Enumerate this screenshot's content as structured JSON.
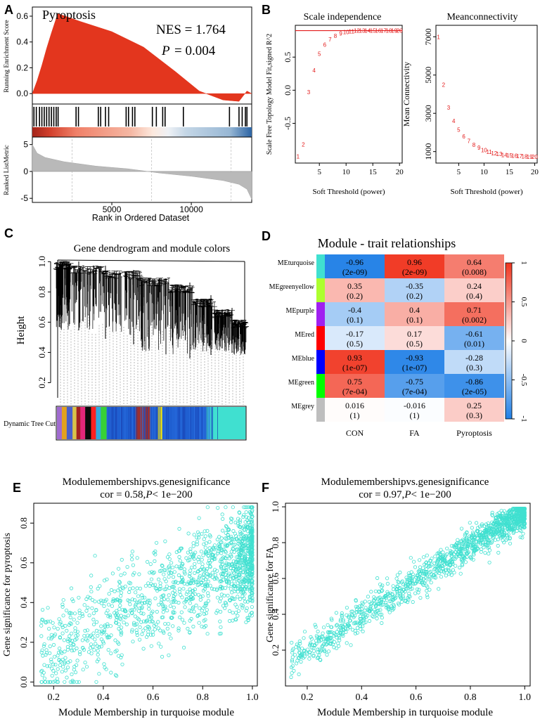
{
  "panels": {
    "A": "A",
    "B": "B",
    "C": "C",
    "D": "D",
    "E": "E",
    "F": "F"
  },
  "chart_data": [
    {
      "id": "A",
      "type": "line",
      "title": "Pyroptosis",
      "nes_label": "NES = 1.764",
      "p_label": "P",
      "p_value": "= 0.004",
      "ylabel_top": "Running Enrichment Score",
      "ylabel_bottom": "Ranked ListMetric",
      "xlabel": "Rank in Ordered Dataset",
      "x_ticks": [
        "5000",
        "10000"
      ],
      "x_tick_values": [
        5000,
        10000
      ],
      "xlim": [
        0,
        13800
      ],
      "es_ticks": [
        "0.0",
        "0.2",
        "0.4",
        "0.6"
      ],
      "es_tick_values": [
        0.0,
        0.2,
        0.4,
        0.6
      ],
      "es_ylim": [
        -0.07,
        0.66
      ],
      "es_curve": [
        [
          0,
          0
        ],
        [
          300,
          0.1
        ],
        [
          600,
          0.22
        ],
        [
          900,
          0.35
        ],
        [
          1200,
          0.47
        ],
        [
          1600,
          0.62
        ],
        [
          3000,
          0.56
        ],
        [
          5000,
          0.48
        ],
        [
          7000,
          0.36
        ],
        [
          9000,
          0.17
        ],
        [
          10500,
          0.02
        ],
        [
          12000,
          -0.05
        ],
        [
          13000,
          -0.06
        ],
        [
          13500,
          0.02
        ],
        [
          13800,
          0.0
        ]
      ],
      "gene_hits": [
        100,
        250,
        450,
        600,
        750,
        900,
        1050,
        1200,
        1350,
        1500,
        1620,
        2750,
        2900,
        4150,
        4300,
        4600,
        4800,
        5900,
        6050,
        6300,
        6450,
        7550,
        7800,
        8200,
        8350,
        9500,
        12400,
        13000,
        13200,
        13400,
        13500
      ],
      "metric_ticks": [
        "-5",
        "0",
        "5"
      ],
      "metric_tick_values": [
        -5,
        0,
        5
      ],
      "metric_ylim": [
        -5.5,
        6
      ],
      "metric_curve": [
        [
          0,
          5
        ],
        [
          300,
          3.4
        ],
        [
          800,
          2.6
        ],
        [
          2000,
          1.8
        ],
        [
          4000,
          1.0
        ],
        [
          6000,
          0.5
        ],
        [
          7000,
          0.1
        ],
        [
          8000,
          -0.3
        ],
        [
          10000,
          -0.9
        ],
        [
          12000,
          -1.7
        ],
        [
          13000,
          -2.4
        ],
        [
          13500,
          -3.3
        ],
        [
          13800,
          -5.2
        ]
      ],
      "vgrid": [
        2500,
        7500,
        12500
      ]
    },
    {
      "id": "B1",
      "type": "scatter",
      "title": "Scale independence",
      "xlabel": "Soft Threshold (power)",
      "ylabel": "Scale Free Topology Model Fit,signed R^2",
      "x_ticks": [
        "5",
        "10",
        "15",
        "20"
      ],
      "x_tick_values": [
        5,
        10,
        15,
        20
      ],
      "y_ticks": [
        "-0.5",
        "0.0",
        "0.5"
      ],
      "y_tick_values": [
        -0.5,
        0.0,
        0.5
      ],
      "xlim": [
        0.5,
        20.5
      ],
      "ylim": [
        -1.1,
        0.98
      ],
      "hline": 0.9,
      "points": [
        {
          "x": 1,
          "y": -1.0,
          "label": "1"
        },
        {
          "x": 2,
          "y": -0.82,
          "label": "2"
        },
        {
          "x": 3,
          "y": -0.03,
          "label": "3"
        },
        {
          "x": 4,
          "y": 0.3,
          "label": "4"
        },
        {
          "x": 5,
          "y": 0.55,
          "label": "5"
        },
        {
          "x": 6,
          "y": 0.69,
          "label": "6"
        },
        {
          "x": 7,
          "y": 0.77,
          "label": "7"
        },
        {
          "x": 8,
          "y": 0.82,
          "label": "8"
        },
        {
          "x": 9,
          "y": 0.86,
          "label": "9"
        },
        {
          "x": 10,
          "y": 0.88,
          "label": "10"
        },
        {
          "x": 11,
          "y": 0.89,
          "label": "11"
        },
        {
          "x": 12,
          "y": 0.9,
          "label": "12"
        },
        {
          "x": 13,
          "y": 0.9,
          "label": "13"
        },
        {
          "x": 14,
          "y": 0.9,
          "label": "14"
        },
        {
          "x": 15,
          "y": 0.9,
          "label": "15"
        },
        {
          "x": 16,
          "y": 0.9,
          "label": "16"
        },
        {
          "x": 17,
          "y": 0.9,
          "label": "17"
        },
        {
          "x": 18,
          "y": 0.9,
          "label": "18"
        },
        {
          "x": 19,
          "y": 0.9,
          "label": "19"
        },
        {
          "x": 20,
          "y": 0.9,
          "label": "20"
        }
      ]
    },
    {
      "id": "B2",
      "type": "scatter",
      "title": "Meanconnectivity",
      "xlabel": "Soft Threshold (power)",
      "ylabel": "Mean Connectivity",
      "x_ticks": [
        "5",
        "10",
        "15",
        "20"
      ],
      "x_tick_values": [
        5,
        10,
        15,
        20
      ],
      "y_ticks": [
        "1000",
        "3000",
        "5000",
        "7000"
      ],
      "y_tick_values": [
        1000,
        3000,
        5000,
        7000
      ],
      "xlim": [
        0.5,
        20.5
      ],
      "ylim": [
        400,
        7600
      ],
      "points": [
        {
          "x": 1,
          "y": 7000,
          "label": "1"
        },
        {
          "x": 2,
          "y": 4500,
          "label": "2"
        },
        {
          "x": 3,
          "y": 3300,
          "label": "3"
        },
        {
          "x": 4,
          "y": 2600,
          "label": "4"
        },
        {
          "x": 5,
          "y": 2150,
          "label": "5"
        },
        {
          "x": 6,
          "y": 1800,
          "label": "6"
        },
        {
          "x": 7,
          "y": 1550,
          "label": "7"
        },
        {
          "x": 8,
          "y": 1350,
          "label": "8"
        },
        {
          "x": 9,
          "y": 1200,
          "label": "9"
        },
        {
          "x": 10,
          "y": 1080,
          "label": "10"
        },
        {
          "x": 11,
          "y": 990,
          "label": "11"
        },
        {
          "x": 12,
          "y": 920,
          "label": "12"
        },
        {
          "x": 13,
          "y": 870,
          "label": "13"
        },
        {
          "x": 14,
          "y": 830,
          "label": "14"
        },
        {
          "x": 15,
          "y": 800,
          "label": "15"
        },
        {
          "x": 16,
          "y": 780,
          "label": "16"
        },
        {
          "x": 17,
          "y": 760,
          "label": "17"
        },
        {
          "x": 18,
          "y": 745,
          "label": "18"
        },
        {
          "x": 19,
          "y": 735,
          "label": "19"
        },
        {
          "x": 20,
          "y": 725,
          "label": "20"
        }
      ]
    },
    {
      "id": "C",
      "type": "dendrogram",
      "title": "Gene dendrogram and module colors",
      "ylabel": "Height",
      "y_ticks": [
        "0.2",
        "0.4",
        "0.6",
        "0.8",
        "1.0"
      ],
      "y_tick_values": [
        0.2,
        0.4,
        0.6,
        0.8,
        1.0
      ],
      "ylim": [
        0.1,
        1.02
      ],
      "color_bar_label": "Dynamic Tree Cut",
      "color_bar": [
        {
          "color": "#a06bd0",
          "w": 1
        },
        {
          "color": "#e3a11e",
          "w": 1
        },
        {
          "color": "#4a5fc9",
          "w": 1.2
        },
        {
          "color": "#d8c34a",
          "w": 0.8
        },
        {
          "color": "#a22020",
          "w": 0.8
        },
        {
          "color": "#e3277a",
          "w": 1
        },
        {
          "color": "#0a0a0a",
          "w": 1.2
        },
        {
          "color": "#ff2020",
          "w": 1
        },
        {
          "color": "#33aadd",
          "w": 1
        },
        {
          "color": "#37d137",
          "w": 1.2
        },
        {
          "color": "#1f5fd1",
          "w": 6
        },
        {
          "color": "#9b3030",
          "w": 3
        },
        {
          "color": "#1f5fd1",
          "w": 1.5
        },
        {
          "color": "#ffee00",
          "w": 1
        },
        {
          "color": "#1f5fd1",
          "w": 9
        },
        {
          "color": "#40e0d0",
          "w": 8
        }
      ]
    },
    {
      "id": "D",
      "type": "heatmap",
      "title": "Module - trait relationships",
      "columns": [
        "CON",
        "FA",
        "Pyroptosis"
      ],
      "rows": [
        {
          "name": "MEturquoise",
          "color": "#40e0d0",
          "cells": [
            {
              "v": -0.96,
              "r": "-0.96",
              "p": "(2e-09)"
            },
            {
              "v": 0.96,
              "r": "0.96",
              "p": "(2e-09)"
            },
            {
              "v": 0.64,
              "r": "0.64",
              "p": "(0.008)"
            }
          ]
        },
        {
          "name": "MEgreenyellow",
          "color": "#adff2f",
          "cells": [
            {
              "v": 0.35,
              "r": "0.35",
              "p": "(0.2)"
            },
            {
              "v": -0.35,
              "r": "-0.35",
              "p": "(0.2)"
            },
            {
              "v": 0.24,
              "r": "0.24",
              "p": "(0.4)"
            }
          ]
        },
        {
          "name": "MEpurple",
          "color": "#a020f0",
          "cells": [
            {
              "v": -0.4,
              "r": "-0.4",
              "p": "(0.1)"
            },
            {
              "v": 0.4,
              "r": "0.4",
              "p": "(0.1)"
            },
            {
              "v": 0.71,
              "r": "0.71",
              "p": "(0.002)"
            }
          ]
        },
        {
          "name": "MEred",
          "color": "#ff0000",
          "cells": [
            {
              "v": -0.17,
              "r": "-0.17",
              "p": "(0.5)"
            },
            {
              "v": 0.17,
              "r": "0.17",
              "p": "(0.5)"
            },
            {
              "v": -0.61,
              "r": "-0.61",
              "p": "(0.01)"
            }
          ]
        },
        {
          "name": "MEblue",
          "color": "#0000ff",
          "cells": [
            {
              "v": 0.93,
              "r": "0.93",
              "p": "(1e-07)"
            },
            {
              "v": -0.93,
              "r": "-0.93",
              "p": "(1e-07)"
            },
            {
              "v": -0.28,
              "r": "-0.28",
              "p": "(0.3)"
            }
          ]
        },
        {
          "name": "MEgreen",
          "color": "#00ff00",
          "cells": [
            {
              "v": 0.75,
              "r": "0.75",
              "p": "(7e-04)"
            },
            {
              "v": -0.75,
              "r": "-0.75",
              "p": "(7e-04)"
            },
            {
              "v": -0.86,
              "r": "-0.86",
              "p": "(2e-05)"
            }
          ]
        },
        {
          "name": "MEgrey",
          "color": "#bebebe",
          "cells": [
            {
              "v": 0.016,
              "r": "0.016",
              "p": "(1)"
            },
            {
              "v": -0.016,
              "r": "-0.016",
              "p": "(1)"
            },
            {
              "v": 0.25,
              "r": "0.25",
              "p": "(0.3)"
            }
          ]
        }
      ],
      "legend_ticks": [
        "1",
        "0.5",
        "0",
        "-0.5",
        "-1"
      ],
      "legend_values": [
        1,
        0.5,
        0,
        -0.5,
        -1
      ],
      "color_low": "#1f7fe6",
      "color_mid": "#ffffff",
      "color_high": "#f0341e"
    },
    {
      "id": "E",
      "type": "scatter",
      "title": "Modulemembershipvs.genesignificance",
      "subtitle_prefix": "cor = 0.58,",
      "subtitle_p": "P",
      "subtitle_suffix": "< 1e−200",
      "xlabel": "Module Membership in turquoise module",
      "ylabel": "Gene significance for  pyroptosis",
      "x_ticks": [
        "0.2",
        "0.4",
        "0.6",
        "0.8",
        "1.0"
      ],
      "x_tick_values": [
        0.2,
        0.4,
        0.6,
        0.8,
        1.0
      ],
      "y_ticks": [
        "0.0",
        "0.2",
        "0.4",
        "0.6",
        "0.8"
      ],
      "y_tick_values": [
        0.0,
        0.2,
        0.4,
        0.6,
        0.8
      ],
      "xlim": [
        0.12,
        1.02
      ],
      "ylim": [
        -0.02,
        0.9
      ],
      "point_color": "#40e0d0",
      "correlation": 0.58,
      "x_range": [
        0.15,
        1.0
      ],
      "y_range": [
        0.0,
        0.88
      ]
    },
    {
      "id": "F",
      "type": "scatter",
      "title": "Modulemembershipvs.genesignificance",
      "subtitle_prefix": "cor = 0.97,",
      "subtitle_p": "P",
      "subtitle_suffix": "< 1e−200",
      "xlabel": "Module Membership in turquoise module",
      "ylabel": "Gene significance for  FA",
      "x_ticks": [
        "0.2",
        "0.4",
        "0.6",
        "0.8",
        "1.0"
      ],
      "x_tick_values": [
        0.2,
        0.4,
        0.6,
        0.8,
        1.0
      ],
      "y_ticks": [
        "0.2",
        "0.4",
        "0.6",
        "0.8",
        "1.0"
      ],
      "y_tick_values": [
        0.2,
        0.4,
        0.6,
        0.8,
        1.0
      ],
      "xlim": [
        0.12,
        1.02
      ],
      "ylim": [
        0.0,
        1.02
      ],
      "point_color": "#40e0d0",
      "correlation": 0.97,
      "x_range": [
        0.14,
        1.0
      ],
      "y_range": [
        0.04,
        0.99
      ]
    }
  ]
}
